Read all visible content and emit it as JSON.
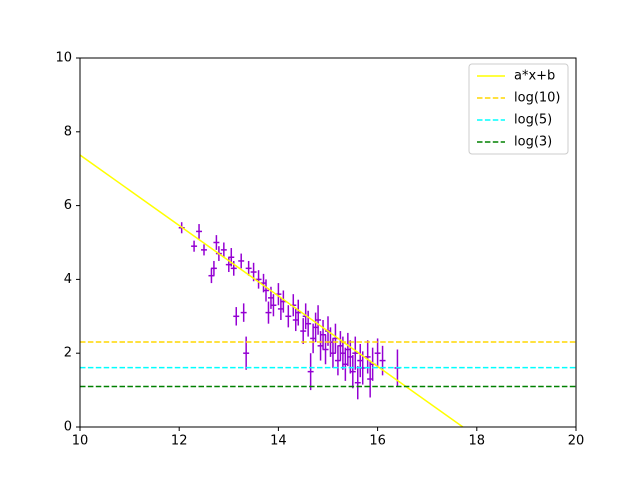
{
  "chart_data": {
    "type": "scatter",
    "xlim": [
      10,
      20
    ],
    "ylim": [
      0,
      10
    ],
    "xticks": [
      10,
      12,
      14,
      16,
      18,
      20
    ],
    "yticks": [
      0,
      2,
      4,
      6,
      8,
      10
    ],
    "legend": "upper right",
    "series": [
      {
        "name": "a*x+b",
        "type": "line",
        "dashed": false,
        "color": "#ffff00",
        "x": [
          10,
          17.72
        ],
        "values": [
          7.37,
          0
        ]
      },
      {
        "name": "log(10)",
        "type": "line",
        "dashed": true,
        "color": "#ffd700",
        "x": [
          10,
          20
        ],
        "values": [
          2.3026,
          2.3026
        ]
      },
      {
        "name": "log(5)",
        "type": "line",
        "dashed": true,
        "color": "#00ffff",
        "x": [
          10,
          20
        ],
        "values": [
          1.6094,
          1.6094
        ]
      },
      {
        "name": "log(3)",
        "type": "line",
        "dashed": true,
        "color": "#008000",
        "x": [
          10,
          20
        ],
        "values": [
          1.0986,
          1.0986
        ]
      }
    ],
    "errorbars": {
      "color": "#9400d3",
      "xerr": 0.06,
      "x": [
        12.05,
        12.3,
        12.4,
        12.5,
        12.65,
        12.7,
        12.75,
        12.8,
        12.9,
        13.0,
        13.05,
        13.1,
        13.15,
        13.25,
        13.3,
        13.35,
        13.4,
        13.5,
        13.6,
        13.7,
        13.75,
        13.8,
        13.85,
        13.9,
        14.0,
        14.05,
        14.1,
        14.2,
        14.3,
        14.35,
        14.4,
        14.5,
        14.55,
        14.6,
        14.65,
        14.7,
        14.75,
        14.8,
        14.85,
        14.9,
        14.95,
        15.0,
        15.05,
        15.1,
        15.15,
        15.2,
        15.25,
        15.3,
        15.35,
        15.4,
        15.45,
        15.5,
        15.55,
        15.6,
        15.65,
        15.7,
        15.8,
        15.85,
        15.9,
        16.0,
        16.1,
        16.4
      ],
      "values": [
        5.4,
        4.9,
        5.3,
        4.8,
        4.1,
        4.3,
        5.0,
        4.7,
        4.8,
        4.4,
        4.6,
        4.3,
        3.0,
        4.5,
        3.1,
        2.0,
        4.3,
        4.2,
        4.0,
        3.9,
        3.7,
        3.1,
        3.5,
        3.3,
        3.6,
        3.2,
        3.4,
        3.0,
        3.3,
        2.9,
        3.1,
        2.6,
        3.0,
        2.8,
        1.5,
        2.4,
        2.7,
        2.9,
        2.2,
        2.5,
        2.1,
        2.6,
        2.3,
        2.0,
        2.4,
        1.8,
        2.2,
        2.0,
        1.7,
        2.1,
        1.9,
        1.5,
        2.0,
        1.2,
        1.8,
        1.6,
        1.9,
        1.3,
        1.7,
        2.0,
        1.8,
        1.6
      ],
      "yerr": [
        0.15,
        0.15,
        0.2,
        0.15,
        0.2,
        0.2,
        0.2,
        0.2,
        0.2,
        0.2,
        0.25,
        0.2,
        0.25,
        0.2,
        0.25,
        0.45,
        0.2,
        0.25,
        0.25,
        0.25,
        0.3,
        0.3,
        0.3,
        0.3,
        0.3,
        0.3,
        0.3,
        0.3,
        0.3,
        0.3,
        0.35,
        0.35,
        0.35,
        0.35,
        0.5,
        0.4,
        0.4,
        0.4,
        0.4,
        0.4,
        0.4,
        0.4,
        0.4,
        0.4,
        0.4,
        0.4,
        0.4,
        0.45,
        0.45,
        0.45,
        0.45,
        0.45,
        0.45,
        0.45,
        0.45,
        0.45,
        0.45,
        0.5,
        0.45,
        0.4,
        0.4,
        0.5
      ]
    }
  }
}
